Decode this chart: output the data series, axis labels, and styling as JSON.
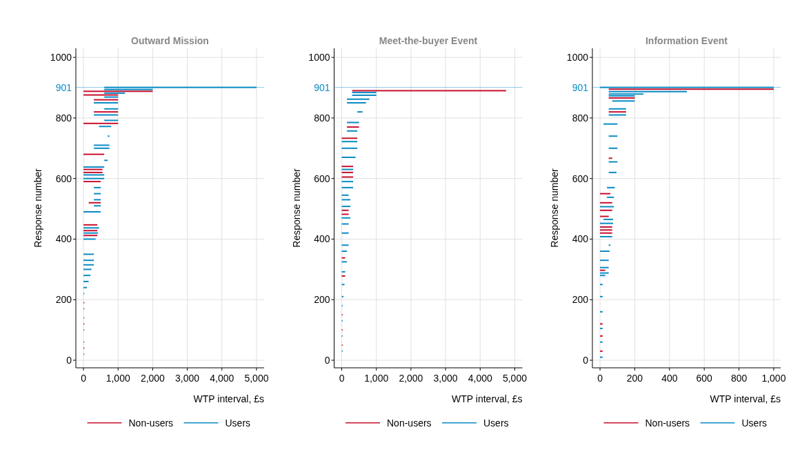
{
  "chart_data": [
    {
      "type": "bar",
      "orientation": "horizontal",
      "title": "Outward Mission",
      "xlabel": "WTP interval, £s",
      "ylabel": "Response number",
      "xlim": [
        -220,
        5220
      ],
      "ylim": [
        -25,
        1030
      ],
      "xticks": [
        0,
        {
          "value": 1000,
          "label": "1,000"
        },
        {
          "value": 2000,
          "label": "2,000"
        },
        {
          "value": 3000,
          "label": "3,000"
        },
        {
          "value": 4000,
          "label": "4,000"
        },
        {
          "value": 5000,
          "label": "5,000"
        }
      ],
      "yticks": [
        0,
        200,
        400,
        600,
        800,
        1000
      ],
      "ref_lines": [
        {
          "axis": "y",
          "value": 901,
          "label": "901",
          "color": "#0a8bc4"
        }
      ],
      "grid": true,
      "legend": "bottom",
      "series": [
        {
          "name": "Non-users",
          "color": "#c8102e",
          "x": [
            40,
            120,
            190,
            412,
            428,
            447,
            520,
            590,
            620,
            630,
            680,
            782,
            820,
            860,
            876,
            888
          ],
          "base": [
            0,
            0,
            0,
            0,
            0,
            0,
            150,
            0,
            0,
            0,
            0,
            0,
            300,
            300,
            0,
            0
          ],
          "values": [
            20,
            20,
            20,
            400,
            400,
            400,
            350,
            500,
            550,
            550,
            600,
            1000,
            700,
            700,
            1000,
            2000
          ]
        },
        {
          "name": "Users",
          "color": "#0a8bc4",
          "x": [
            20,
            60,
            100,
            140,
            170,
            220,
            240,
            260,
            280,
            300,
            315,
            330,
            350,
            400,
            420,
            437,
            490,
            510,
            530,
            550,
            570,
            600,
            612,
            638,
            660,
            700,
            710,
            740,
            772,
            792,
            810,
            830,
            850,
            869,
            882,
            894,
            901
          ],
          "base": [
            0,
            0,
            0,
            0,
            0,
            0,
            0,
            0,
            0,
            0,
            0,
            0,
            0,
            0,
            0,
            0,
            0,
            300,
            300,
            300,
            300,
            0,
            0,
            0,
            600,
            300,
            300,
            700,
            450,
            600,
            300,
            600,
            300,
            600,
            600,
            600,
            600
          ],
          "values": [
            20,
            20,
            20,
            20,
            20,
            20,
            100,
            150,
            200,
            230,
            300,
            300,
            300,
            350,
            420,
            450,
            500,
            200,
            200,
            200,
            200,
            600,
            600,
            600,
            100,
            450,
            450,
            50,
            350,
            400,
            700,
            400,
            700,
            400,
            600,
            1400,
            4400
          ]
        }
      ]
    },
    {
      "type": "bar",
      "orientation": "horizontal",
      "title": "Meet-the-buyer Event",
      "xlabel": "WTP interval, £s",
      "ylabel": "Response number",
      "xlim": [
        -220,
        5220
      ],
      "ylim": [
        -25,
        1030
      ],
      "xticks": [
        0,
        {
          "value": 1000,
          "label": "1,000"
        },
        {
          "value": 2000,
          "label": "2,000"
        },
        {
          "value": 3000,
          "label": "3,000"
        },
        {
          "value": 4000,
          "label": "4,000"
        },
        {
          "value": 5000,
          "label": "5,000"
        }
      ],
      "yticks": [
        0,
        200,
        400,
        600,
        800,
        1000
      ],
      "ref_lines": [
        {
          "axis": "y",
          "value": 901,
          "label": "901",
          "color": "#0a8bc4"
        }
      ],
      "grid": true,
      "legend": "bottom",
      "series": [
        {
          "name": "Non-users",
          "color": "#c8102e",
          "x": [
            50,
            100,
            150,
            278,
            338,
            482,
            495,
            605,
            620,
            640,
            733,
            770,
            890
          ],
          "base": [
            0,
            0,
            0,
            0,
            0,
            0,
            0,
            0,
            0,
            0,
            0,
            150,
            300
          ],
          "values": [
            25,
            25,
            25,
            100,
            100,
            200,
            200,
            330,
            330,
            330,
            450,
            350,
            4450
          ]
        },
        {
          "name": "Users",
          "color": "#0a8bc4",
          "x": [
            30,
            80,
            130,
            180,
            210,
            250,
            292,
            325,
            360,
            380,
            420,
            450,
            470,
            508,
            530,
            545,
            570,
            590,
            630,
            670,
            700,
            722,
            757,
            785,
            820,
            850,
            862,
            875,
            884
          ],
          "base": [
            0,
            0,
            0,
            0,
            0,
            0,
            0,
            0,
            0,
            0,
            0,
            0,
            0,
            0,
            0,
            0,
            0,
            0,
            0,
            0,
            0,
            0,
            150,
            150,
            450,
            150,
            150,
            300,
            300
          ],
          "values": [
            25,
            25,
            25,
            25,
            50,
            80,
            100,
            150,
            150,
            200,
            200,
            200,
            250,
            250,
            250,
            200,
            330,
            330,
            330,
            400,
            450,
            450,
            300,
            350,
            150,
            550,
            650,
            700,
            700
          ]
        }
      ]
    },
    {
      "type": "bar",
      "orientation": "horizontal",
      "title": "Information Event",
      "xlabel": "WTP interval, £s",
      "ylabel": "Response number",
      "xlim": [
        -44,
        1040
      ],
      "ylim": [
        -25,
        1030
      ],
      "xticks": [
        0,
        200,
        400,
        600,
        800,
        {
          "value": 1000,
          "label": "1,000"
        }
      ],
      "yticks": [
        0,
        200,
        400,
        600,
        800,
        1000
      ],
      "ref_lines": [
        {
          "axis": "y",
          "value": 901,
          "label": "901",
          "color": "#0a8bc4"
        }
      ],
      "grid": true,
      "legend": "bottom",
      "series": [
        {
          "name": "Non-users",
          "color": "#c8102e",
          "x": [
            30,
            80,
            120,
            297,
            420,
            430,
            440,
            475,
            495,
            520,
            550,
            667,
            820,
            866,
            895
          ],
          "base": [
            0,
            0,
            0,
            0,
            0,
            0,
            0,
            0,
            0,
            0,
            0,
            50,
            50,
            50,
            50
          ],
          "values": [
            15,
            15,
            15,
            30,
            70,
            70,
            70,
            50,
            70,
            70,
            60,
            20,
            100,
            150,
            950
          ]
        },
        {
          "name": "Users",
          "color": "#0a8bc4",
          "x": [
            10,
            60,
            105,
            160,
            210,
            250,
            280,
            288,
            306,
            330,
            360,
            380,
            408,
            452,
            465,
            507,
            538,
            570,
            620,
            655,
            700,
            740,
            780,
            810,
            830,
            856,
            873,
            879,
            887,
            901
          ],
          "base": [
            0,
            0,
            0,
            0,
            0,
            0,
            0,
            0,
            0,
            0,
            0,
            50,
            0,
            0,
            20,
            0,
            40,
            40,
            50,
            50,
            50,
            50,
            20,
            50,
            50,
            70,
            50,
            50,
            50,
            0
          ],
          "values": [
            15,
            15,
            15,
            15,
            15,
            15,
            30,
            50,
            50,
            50,
            55,
            10,
            70,
            75,
            55,
            80,
            40,
            45,
            45,
            50,
            50,
            50,
            80,
            100,
            100,
            130,
            150,
            200,
            450,
            1000
          ]
        }
      ]
    }
  ]
}
